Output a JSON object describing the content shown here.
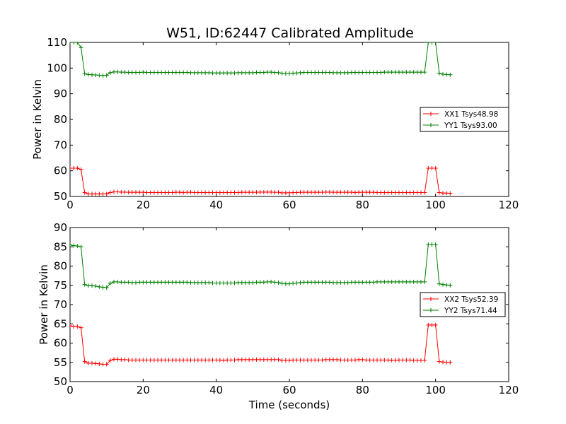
{
  "title": "W51, ID:62447 Calibrated Amplitude",
  "chart_data": [
    {
      "type": "line",
      "title": "W51, ID:62447 Calibrated Amplitude",
      "xlabel": "",
      "ylabel": "Power in Kelvin",
      "xlim": [
        0,
        120
      ],
      "ylim": [
        50,
        110
      ],
      "xticks": [
        0,
        20,
        40,
        60,
        80,
        100,
        120
      ],
      "yticks": [
        50,
        60,
        70,
        80,
        90,
        100,
        110
      ],
      "grid": false,
      "legend_position": "right",
      "x": [
        0,
        1,
        2,
        3,
        4,
        5,
        6,
        7,
        8,
        9,
        10,
        11,
        12,
        13,
        14,
        15,
        16,
        17,
        18,
        19,
        20,
        21,
        22,
        23,
        24,
        25,
        26,
        27,
        28,
        29,
        30,
        31,
        32,
        33,
        34,
        35,
        36,
        37,
        38,
        39,
        40,
        41,
        42,
        43,
        44,
        45,
        46,
        47,
        48,
        49,
        50,
        51,
        52,
        53,
        54,
        55,
        56,
        57,
        58,
        59,
        60,
        61,
        62,
        63,
        64,
        65,
        66,
        67,
        68,
        69,
        70,
        71,
        72,
        73,
        74,
        75,
        76,
        77,
        78,
        79,
        80,
        81,
        82,
        83,
        84,
        85,
        86,
        87,
        88,
        89,
        90,
        91,
        92,
        93,
        94,
        95,
        96,
        97,
        98,
        99,
        100,
        101,
        102,
        103,
        104
      ],
      "series": [
        {
          "name": "XX1 Tsys48.98",
          "color": "#ff0000",
          "values": [
            61,
            61,
            61,
            60.5,
            51.5,
            51,
            51,
            51,
            51,
            51,
            51,
            51.5,
            51.8,
            51.8,
            51.7,
            51.7,
            51.6,
            51.6,
            51.6,
            51.6,
            51.6,
            51.5,
            51.5,
            51.5,
            51.5,
            51.5,
            51.5,
            51.5,
            51.5,
            51.6,
            51.6,
            51.5,
            51.6,
            51.6,
            51.5,
            51.5,
            51.5,
            51.5,
            51.5,
            51.5,
            51.5,
            51.5,
            51.5,
            51.5,
            51.5,
            51.5,
            51.5,
            51.6,
            51.6,
            51.6,
            51.6,
            51.6,
            51.7,
            51.7,
            51.7,
            51.7,
            51.6,
            51.6,
            51.4,
            51.4,
            51.4,
            51.5,
            51.5,
            51.6,
            51.6,
            51.6,
            51.6,
            51.6,
            51.6,
            51.6,
            51.7,
            51.7,
            51.6,
            51.6,
            51.6,
            51.6,
            51.6,
            51.6,
            51.5,
            51.6,
            51.6,
            51.6,
            51.6,
            51.6,
            51.5,
            51.5,
            51.5,
            51.5,
            51.5,
            51.5,
            51.5,
            51.5,
            51.5,
            51.5,
            51.5,
            51.5,
            51.5,
            51.5,
            61,
            61,
            61,
            51.5,
            51.3,
            51.3,
            51.2
          ]
        },
        {
          "name": "YY1 Tsys93.00",
          "color": "#008000",
          "values": [
            110,
            110,
            110,
            108,
            97.8,
            97.5,
            97.4,
            97.3,
            97.2,
            97.1,
            97.2,
            98.2,
            98.5,
            98.5,
            98.4,
            98.4,
            98.3,
            98.3,
            98.3,
            98.3,
            98.4,
            98.3,
            98.3,
            98.3,
            98.3,
            98.3,
            98.3,
            98.3,
            98.3,
            98.3,
            98.3,
            98.3,
            98.3,
            98.2,
            98.2,
            98.2,
            98.2,
            98.2,
            98.2,
            98.1,
            98.1,
            98.1,
            98.1,
            98.1,
            98.1,
            98.1,
            98.2,
            98.2,
            98.2,
            98.2,
            98.2,
            98.3,
            98.3,
            98.3,
            98.4,
            98.4,
            98.3,
            98.2,
            98.0,
            97.9,
            97.9,
            98.0,
            98.1,
            98.2,
            98.3,
            98.3,
            98.3,
            98.3,
            98.3,
            98.3,
            98.3,
            98.3,
            98.2,
            98.2,
            98.2,
            98.2,
            98.2,
            98.3,
            98.3,
            98.3,
            98.3,
            98.3,
            98.3,
            98.3,
            98.3,
            98.3,
            98.4,
            98.4,
            98.4,
            98.4,
            98.4,
            98.4,
            98.4,
            98.4,
            98.4,
            98.4,
            98.4,
            98.4,
            110,
            110,
            110,
            98,
            97.6,
            97.5,
            97.4
          ]
        }
      ]
    },
    {
      "type": "line",
      "title": "",
      "xlabel": "Time (seconds)",
      "ylabel": "Power in Kelvin",
      "xlim": [
        0,
        120
      ],
      "ylim": [
        50,
        90
      ],
      "xticks": [
        0,
        20,
        40,
        60,
        80,
        100,
        120
      ],
      "yticks": [
        50,
        55,
        60,
        65,
        70,
        75,
        80,
        85,
        90
      ],
      "grid": false,
      "legend_position": "right",
      "x": [
        0,
        1,
        2,
        3,
        4,
        5,
        6,
        7,
        8,
        9,
        10,
        11,
        12,
        13,
        14,
        15,
        16,
        17,
        18,
        19,
        20,
        21,
        22,
        23,
        24,
        25,
        26,
        27,
        28,
        29,
        30,
        31,
        32,
        33,
        34,
        35,
        36,
        37,
        38,
        39,
        40,
        41,
        42,
        43,
        44,
        45,
        46,
        47,
        48,
        49,
        50,
        51,
        52,
        53,
        54,
        55,
        56,
        57,
        58,
        59,
        60,
        61,
        62,
        63,
        64,
        65,
        66,
        67,
        68,
        69,
        70,
        71,
        72,
        73,
        74,
        75,
        76,
        77,
        78,
        79,
        80,
        81,
        82,
        83,
        84,
        85,
        86,
        87,
        88,
        89,
        90,
        91,
        92,
        93,
        94,
        95,
        96,
        97,
        98,
        99,
        100,
        101,
        102,
        103,
        104
      ],
      "series": [
        {
          "name": "XX2 Tsys52.39",
          "color": "#ff0000",
          "values": [
            64.5,
            64.3,
            64.3,
            64,
            55.2,
            54.8,
            54.8,
            54.7,
            54.6,
            54.5,
            54.5,
            55.5,
            55.8,
            55.8,
            55.7,
            55.7,
            55.6,
            55.6,
            55.6,
            55.6,
            55.6,
            55.6,
            55.6,
            55.6,
            55.6,
            55.6,
            55.6,
            55.6,
            55.6,
            55.6,
            55.6,
            55.6,
            55.6,
            55.6,
            55.6,
            55.6,
            55.6,
            55.6,
            55.6,
            55.6,
            55.6,
            55.6,
            55.5,
            55.6,
            55.6,
            55.6,
            55.7,
            55.7,
            55.7,
            55.7,
            55.7,
            55.7,
            55.7,
            55.7,
            55.7,
            55.7,
            55.7,
            55.7,
            55.5,
            55.5,
            55.5,
            55.6,
            55.6,
            55.6,
            55.6,
            55.6,
            55.6,
            55.6,
            55.6,
            55.6,
            55.7,
            55.7,
            55.7,
            55.7,
            55.6,
            55.6,
            55.6,
            55.6,
            55.6,
            55.7,
            55.7,
            55.6,
            55.6,
            55.6,
            55.6,
            55.6,
            55.6,
            55.6,
            55.5,
            55.5,
            55.6,
            55.6,
            55.6,
            55.6,
            55.5,
            55.5,
            55.5,
            55.5,
            64.7,
            64.7,
            64.7,
            55.2,
            55.1,
            55.0,
            55.0
          ]
        },
        {
          "name": "YY2 Tsys71.44",
          "color": "#008000",
          "values": [
            85.5,
            85.3,
            85.2,
            85,
            75.2,
            74.9,
            74.9,
            74.8,
            74.6,
            74.5,
            74.4,
            75.5,
            75.9,
            75.9,
            75.8,
            75.8,
            75.8,
            75.7,
            75.7,
            75.8,
            75.8,
            75.8,
            75.8,
            75.8,
            75.8,
            75.8,
            75.8,
            75.8,
            75.8,
            75.8,
            75.8,
            75.8,
            75.8,
            75.7,
            75.7,
            75.7,
            75.7,
            75.7,
            75.7,
            75.6,
            75.6,
            75.6,
            75.6,
            75.6,
            75.6,
            75.6,
            75.7,
            75.7,
            75.7,
            75.7,
            75.7,
            75.8,
            75.8,
            75.8,
            75.9,
            75.9,
            75.8,
            75.7,
            75.5,
            75.4,
            75.4,
            75.5,
            75.6,
            75.7,
            75.8,
            75.8,
            75.8,
            75.8,
            75.8,
            75.8,
            75.8,
            75.8,
            75.7,
            75.7,
            75.7,
            75.7,
            75.7,
            75.8,
            75.8,
            75.8,
            75.8,
            75.8,
            75.8,
            75.8,
            75.9,
            75.9,
            75.9,
            75.9,
            75.9,
            75.9,
            75.9,
            75.9,
            75.9,
            75.9,
            75.9,
            75.9,
            75.9,
            75.9,
            85.6,
            85.6,
            85.6,
            75.4,
            75.2,
            75.1,
            75.0
          ]
        }
      ]
    }
  ]
}
